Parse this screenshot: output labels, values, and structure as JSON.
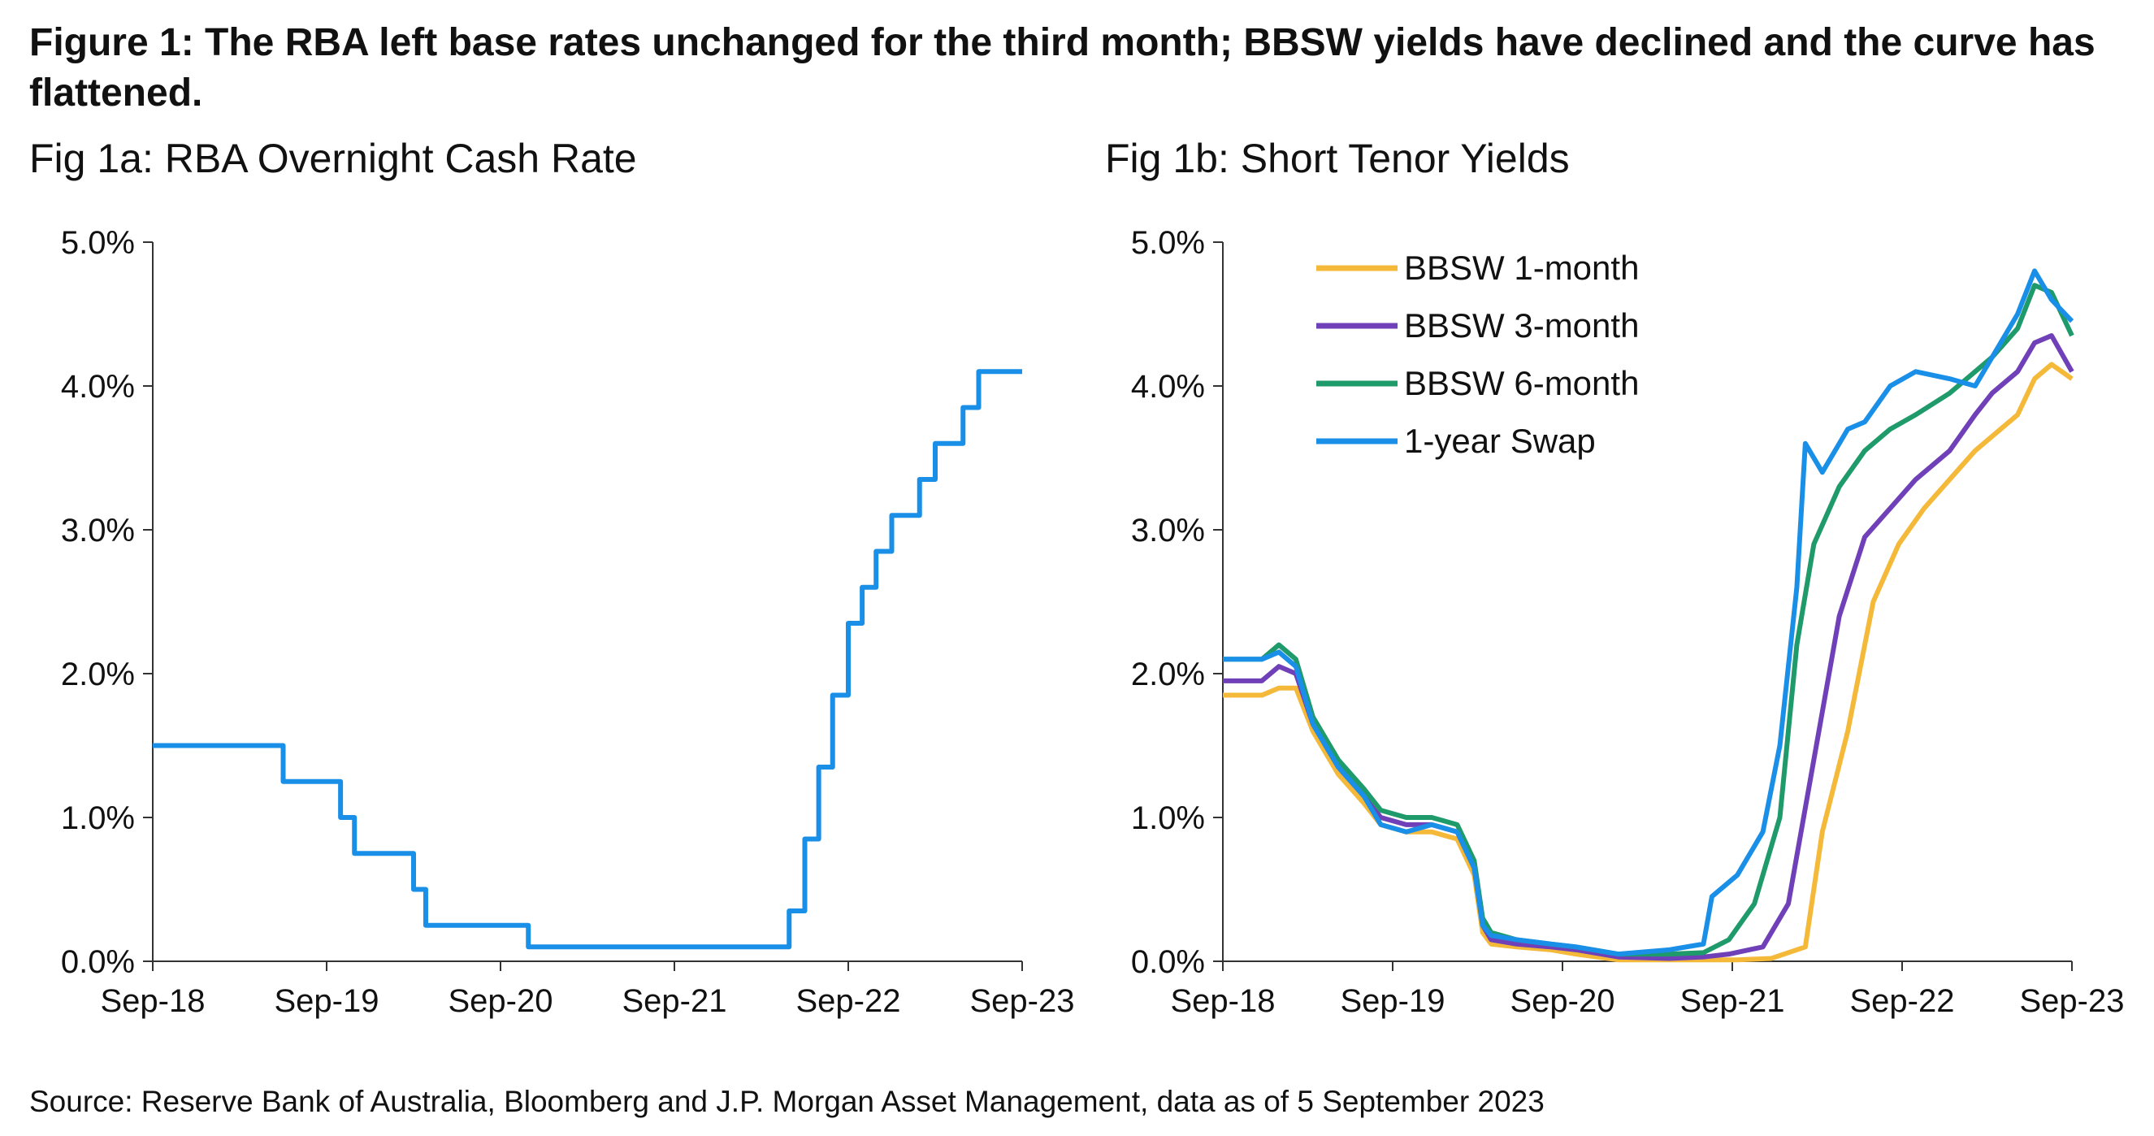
{
  "figure_title": "Figure 1: The RBA left base rates unchanged for the third month; BBSW yields have declined and the curve has flattened.",
  "source": "Source: Reserve Bank of Australia, Bloomberg and J.P. Morgan Asset Management, data as of 5 September 2023",
  "colors": {
    "cash_rate": "#1a8fe8",
    "bbsw1m": "#f5b93a",
    "bbsw3m": "#7040b8",
    "bbsw6m": "#1f9a6a",
    "swap1y": "#1a8fe8",
    "axis": "#333333"
  },
  "chart_data": [
    {
      "type": "line",
      "title": "Fig 1a: RBA Overnight Cash Rate",
      "xlabel": "",
      "ylabel": "",
      "x_ticks": [
        "Sep-18",
        "Sep-19",
        "Sep-20",
        "Sep-21",
        "Sep-22",
        "Sep-23"
      ],
      "y_ticks": [
        "0.0%",
        "1.0%",
        "2.0%",
        "3.0%",
        "4.0%",
        "5.0%"
      ],
      "xlim": [
        2018.67,
        2023.67
      ],
      "ylim": [
        0,
        5
      ],
      "grid": false,
      "series": [
        {
          "step": true,
          "x": [
            2018.67,
            2019.42,
            2019.75,
            2019.83,
            2020.17,
            2020.24,
            2020.83,
            2022.33,
            2022.42,
            2022.5,
            2022.58,
            2022.67,
            2022.75,
            2022.83,
            2022.92,
            2023.08,
            2023.17,
            2023.33,
            2023.42,
            2023.67
          ],
          "values": [
            1.5,
            1.25,
            1.0,
            0.75,
            0.5,
            0.25,
            0.1,
            0.35,
            0.85,
            1.35,
            1.85,
            2.35,
            2.6,
            2.85,
            3.1,
            3.35,
            3.6,
            3.85,
            4.1,
            4.1
          ]
        }
      ]
    },
    {
      "type": "line",
      "title": "Fig 1b: Short Tenor Yields",
      "xlabel": "",
      "ylabel": "",
      "x_ticks": [
        "Sep-18",
        "Sep-19",
        "Sep-20",
        "Sep-21",
        "Sep-22",
        "Sep-23"
      ],
      "y_ticks": [
        "0.0%",
        "1.0%",
        "2.0%",
        "3.0%",
        "4.0%",
        "5.0%"
      ],
      "xlim": [
        2018.67,
        2023.67
      ],
      "ylim": [
        0,
        5
      ],
      "grid": false,
      "legend": "top-left",
      "series": [
        {
          "name": "BBSW 1-month",
          "x": [
            2018.67,
            2018.9,
            2019.0,
            2019.1,
            2019.2,
            2019.35,
            2019.5,
            2019.6,
            2019.75,
            2019.9,
            2020.05,
            2020.15,
            2020.2,
            2020.25,
            2020.4,
            2020.6,
            2020.75,
            2021.0,
            2021.3,
            2021.5,
            2021.7,
            2021.9,
            2022.1,
            2022.2,
            2022.35,
            2022.5,
            2022.65,
            2022.8,
            2022.95,
            2023.1,
            2023.2,
            2023.35,
            2023.45,
            2023.55,
            2023.67
          ],
          "values": [
            1.85,
            1.85,
            1.9,
            1.9,
            1.6,
            1.3,
            1.1,
            0.95,
            0.9,
            0.9,
            0.85,
            0.6,
            0.2,
            0.12,
            0.1,
            0.08,
            0.05,
            0.01,
            0.01,
            0.01,
            0.01,
            0.02,
            0.1,
            0.9,
            1.6,
            2.5,
            2.9,
            3.15,
            3.35,
            3.55,
            3.65,
            3.8,
            4.05,
            4.15,
            4.05
          ]
        },
        {
          "name": "BBSW 3-month",
          "x": [
            2018.67,
            2018.9,
            2019.0,
            2019.1,
            2019.2,
            2019.35,
            2019.5,
            2019.6,
            2019.75,
            2019.9,
            2020.05,
            2020.15,
            2020.2,
            2020.25,
            2020.4,
            2020.6,
            2020.75,
            2021.0,
            2021.3,
            2021.5,
            2021.65,
            2021.85,
            2022.0,
            2022.15,
            2022.3,
            2022.45,
            2022.6,
            2022.75,
            2022.95,
            2023.1,
            2023.2,
            2023.35,
            2023.45,
            2023.55,
            2023.67
          ],
          "values": [
            1.95,
            1.95,
            2.05,
            2.0,
            1.65,
            1.35,
            1.15,
            1.0,
            0.95,
            0.95,
            0.9,
            0.65,
            0.25,
            0.15,
            0.12,
            0.1,
            0.08,
            0.03,
            0.02,
            0.03,
            0.05,
            0.1,
            0.4,
            1.4,
            2.4,
            2.95,
            3.15,
            3.35,
            3.55,
            3.8,
            3.95,
            4.1,
            4.3,
            4.35,
            4.1
          ]
        },
        {
          "name": "BBSW 6-month",
          "x": [
            2018.67,
            2018.9,
            2019.0,
            2019.1,
            2019.2,
            2019.35,
            2019.5,
            2019.6,
            2019.75,
            2019.9,
            2020.05,
            2020.15,
            2020.2,
            2020.25,
            2020.4,
            2020.6,
            2020.75,
            2021.0,
            2021.3,
            2021.5,
            2021.65,
            2021.8,
            2021.95,
            2022.05,
            2022.15,
            2022.3,
            2022.45,
            2022.6,
            2022.75,
            2022.95,
            2023.1,
            2023.2,
            2023.35,
            2023.45,
            2023.55,
            2023.67
          ],
          "values": [
            2.1,
            2.1,
            2.2,
            2.1,
            1.7,
            1.4,
            1.2,
            1.05,
            1.0,
            1.0,
            0.95,
            0.7,
            0.3,
            0.2,
            0.15,
            0.12,
            0.1,
            0.05,
            0.05,
            0.06,
            0.15,
            0.4,
            1.0,
            2.2,
            2.9,
            3.3,
            3.55,
            3.7,
            3.8,
            3.95,
            4.1,
            4.2,
            4.4,
            4.7,
            4.65,
            4.35
          ]
        },
        {
          "name": "1-year Swap",
          "x": [
            2018.67,
            2018.9,
            2019.0,
            2019.1,
            2019.2,
            2019.35,
            2019.5,
            2019.6,
            2019.75,
            2019.9,
            2020.05,
            2020.15,
            2020.2,
            2020.25,
            2020.4,
            2020.6,
            2020.75,
            2021.0,
            2021.3,
            2021.5,
            2021.55,
            2021.7,
            2021.85,
            2021.95,
            2022.05,
            2022.1,
            2022.2,
            2022.35,
            2022.45,
            2022.6,
            2022.75,
            2022.95,
            2023.1,
            2023.2,
            2023.35,
            2023.45,
            2023.55,
            2023.67
          ],
          "values": [
            2.1,
            2.1,
            2.15,
            2.05,
            1.65,
            1.35,
            1.15,
            0.95,
            0.9,
            0.95,
            0.9,
            0.65,
            0.25,
            0.18,
            0.15,
            0.12,
            0.1,
            0.05,
            0.08,
            0.12,
            0.45,
            0.6,
            0.9,
            1.5,
            2.6,
            3.6,
            3.4,
            3.7,
            3.75,
            4.0,
            4.1,
            4.05,
            4.0,
            4.2,
            4.5,
            4.8,
            4.6,
            4.45
          ]
        }
      ]
    }
  ]
}
